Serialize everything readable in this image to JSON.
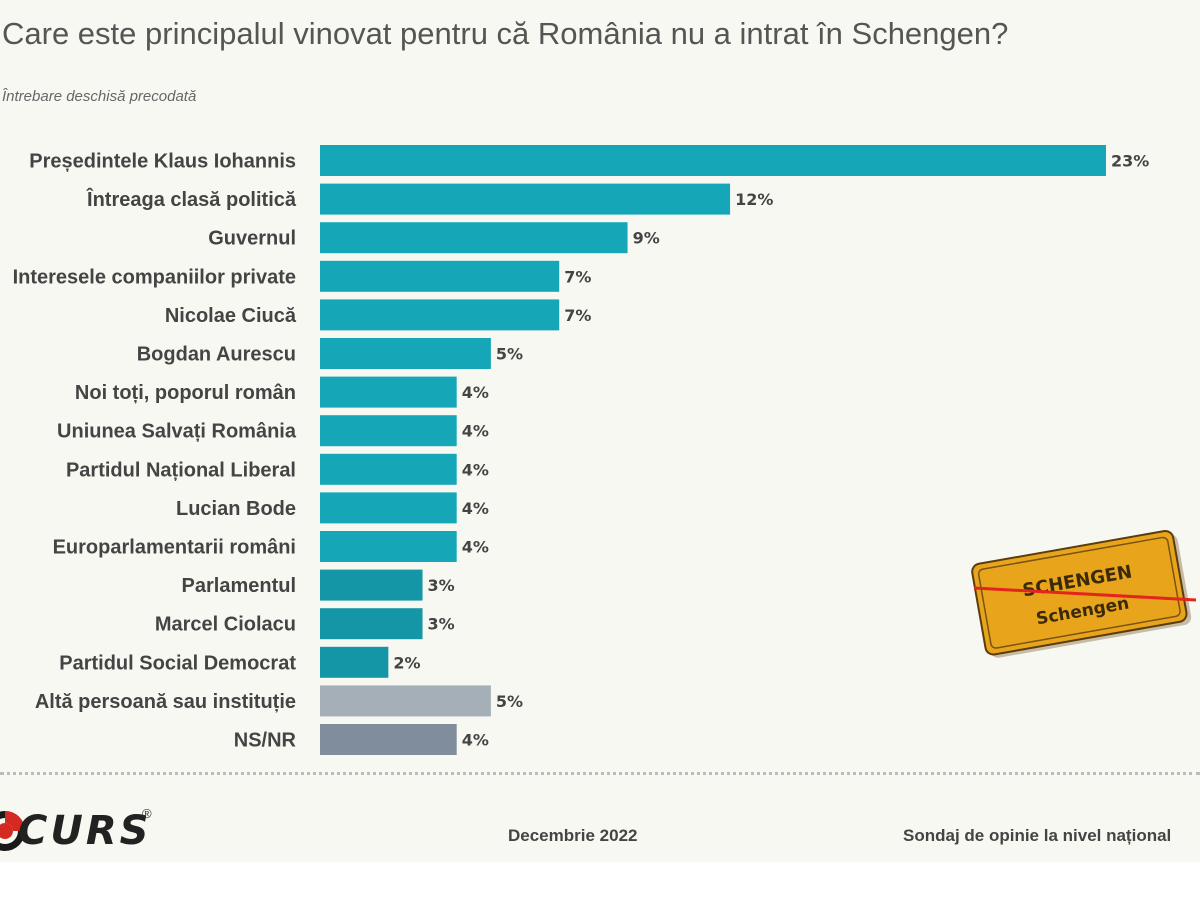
{
  "header": {
    "title": "Care este principalul vinovat pentru că România nu a intrat în Schengen?",
    "subtitle": "Întrebare deschisă precodată"
  },
  "chart_data": {
    "type": "bar",
    "orientation": "horizontal",
    "title": "Care este principalul vinovat pentru că România nu a intrat în Schengen?",
    "subtitle": "Întrebare deschisă precodată",
    "unit": "%",
    "xlim": [
      0,
      23
    ],
    "categories": [
      "Președintele Klaus Iohannis",
      "Întreaga clasă politică",
      "Guvernul",
      "Interesele companiilor private",
      "Nicolae Ciucă",
      "Bogdan Aurescu",
      "Noi toți, poporul român",
      "Uniunea Salvați România",
      "Partidul Național Liberal",
      "Lucian Bode",
      "Europarlamentarii români",
      "Parlamentul",
      "Marcel Ciolacu",
      "Partidul Social Democrat",
      "Altă persoană sau instituție",
      "NS/NR"
    ],
    "values": [
      23,
      12,
      9,
      7,
      7,
      5,
      4,
      4,
      4,
      4,
      4,
      3,
      3,
      2,
      5,
      4
    ],
    "value_labels": [
      "23%",
      "12%",
      "9%",
      "7%",
      "7%",
      "5%",
      "4%",
      "4%",
      "4%",
      "4%",
      "4%",
      "3%",
      "3%",
      "2%",
      "5%",
      "4%"
    ],
    "colors": [
      "#15a7b8",
      "#15a7b8",
      "#15a7b8",
      "#15a7b8",
      "#15a7b8",
      "#15a7b8",
      "#15a7b8",
      "#15a7b8",
      "#15a7b8",
      "#15a7b8",
      "#15a7b8",
      "#1596a6",
      "#1596a6",
      "#1596a6",
      "#a4afb8",
      "#7f8d9c"
    ]
  },
  "footer": {
    "logo": "CURS",
    "logo_mark": "®",
    "date": "Decembrie 2022",
    "note": "Sondaj de opinie la nivel național"
  },
  "sign": {
    "top_text": "SCHENGEN",
    "bottom_text": "Schengen",
    "color": "#e8a51c",
    "strike_color": "#e2261c"
  }
}
